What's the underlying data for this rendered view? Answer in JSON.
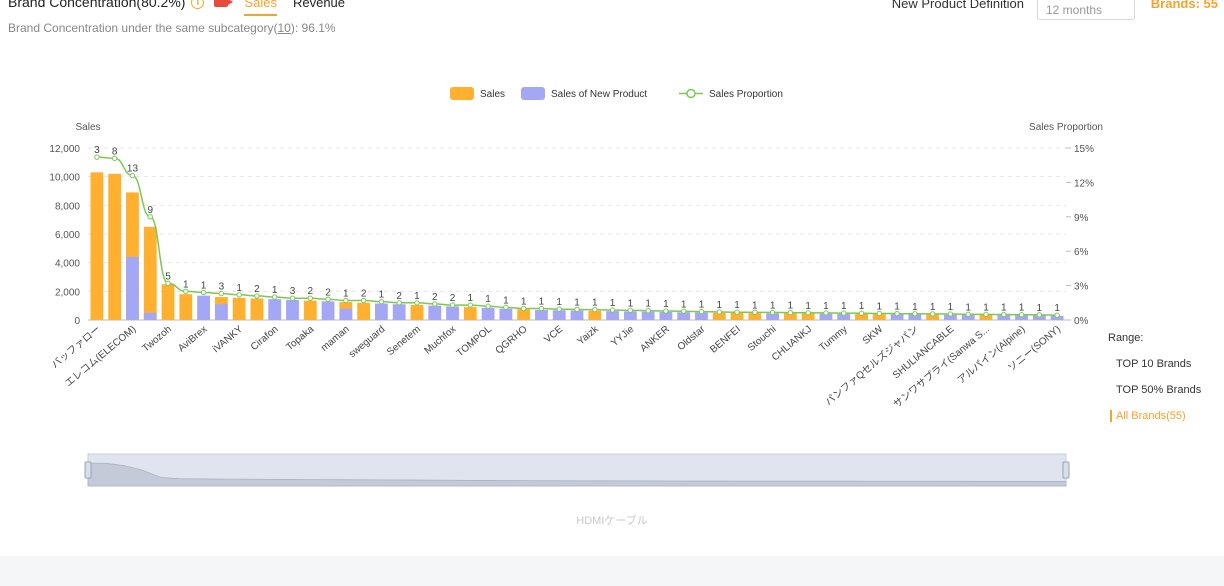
{
  "header": {
    "title": "Brand Concentration(80.2%)",
    "tabs": [
      "Sales",
      "Revenue"
    ],
    "active_tab": "Sales",
    "subtitle_prefix": "Brand Concentration under the same subcategory(",
    "subtitle_link": "10",
    "subtitle_suffix": "): 96.1%",
    "new_product_label": "New Product Definition",
    "months_value": "12 months",
    "brands_count": "Brands: 55"
  },
  "range": {
    "title": "Range:",
    "options": [
      "TOP 10 Brands",
      "TOP 50% Brands",
      "All Brands(55)"
    ],
    "active": "All Brands(55)"
  },
  "watermark": "HDMIケーブル",
  "colors": {
    "sales": "#ffb02e",
    "new_product": "#a4a7f5",
    "proportion": "#7dc855",
    "accent": "#f7a22b"
  },
  "chart_data": {
    "type": "bar",
    "legend": [
      "Sales",
      "Sales of New Product",
      "Sales Proportion"
    ],
    "ylabel": "Sales",
    "y2label": "Sales Proportion",
    "ylim": [
      0,
      12000
    ],
    "y2lim": [
      0,
      15
    ],
    "yticks": [
      "0",
      "2,000",
      "4,000",
      "6,000",
      "8,000",
      "10,000",
      "12,000"
    ],
    "y2ticks": [
      "0%",
      "3%",
      "6%",
      "9%",
      "12%",
      "15%"
    ],
    "xtick_labels": [
      "バッファロー",
      "エレコム(ELECOM)",
      "Twozoh",
      "AviBrex",
      "iVANKY",
      "Cirafon",
      "Topaka",
      "maman",
      "sweguard",
      "Senetem",
      "Muchfox",
      "TOMPOL",
      "QGRHO",
      "VCE",
      "Yaizk",
      "YYJie",
      "ANKER",
      "Oldstar",
      "BENFEI",
      "Stouchi",
      "CHLIANKJ",
      "Tummy",
      "SKW",
      "パンファQセルズジャパン",
      "SHULIANCABLE",
      "サンワサプライ(Sanwa S...",
      "アルパイン(Alpine)",
      "ソニー(SONY)"
    ],
    "xtick_positions": [
      0,
      2,
      4,
      6,
      8,
      10,
      12,
      14,
      16,
      18,
      20,
      22,
      24,
      26,
      28,
      30,
      32,
      34,
      36,
      38,
      40,
      42,
      44,
      46,
      48,
      50,
      52,
      54
    ],
    "sales": [
      10300,
      10200,
      8900,
      6500,
      2500,
      1800,
      1700,
      1600,
      1550,
      1500,
      1450,
      1400,
      1350,
      1300,
      1250,
      1200,
      1150,
      1100,
      1050,
      1000,
      950,
      900,
      850,
      800,
      750,
      700,
      680,
      660,
      640,
      620,
      600,
      580,
      560,
      540,
      520,
      500,
      490,
      480,
      470,
      460,
      450,
      440,
      430,
      420,
      410,
      400,
      390,
      380,
      370,
      360,
      350,
      340,
      330,
      320,
      300
    ],
    "new_product": [
      0,
      0,
      4400,
      500,
      0,
      0,
      1700,
      1100,
      0,
      0,
      1450,
      1400,
      0,
      1300,
      800,
      0,
      1150,
      1100,
      0,
      1000,
      950,
      0,
      850,
      800,
      0,
      700,
      680,
      660,
      0,
      620,
      600,
      580,
      560,
      540,
      520,
      0,
      0,
      0,
      470,
      0,
      0,
      440,
      430,
      0,
      0,
      400,
      390,
      0,
      370,
      360,
      0,
      340,
      330,
      320,
      300
    ],
    "labels": [
      "3",
      "8",
      "13",
      "9",
      "5",
      "1",
      "1",
      "3",
      "1",
      "2",
      "1",
      "3",
      "2",
      "2",
      "1",
      "2",
      "1",
      "2",
      "1",
      "2",
      "2",
      "1",
      "1",
      "1",
      "1",
      "1",
      "1",
      "1",
      "1",
      "1",
      "1",
      "1",
      "1",
      "1",
      "1",
      "1",
      "1",
      "1",
      "1",
      "1",
      "1",
      "1",
      "1",
      "1",
      "1",
      "1",
      "1",
      "1",
      "1",
      "1",
      "1",
      "1",
      "1",
      "1",
      "1"
    ],
    "proportion": [
      14.2,
      14.1,
      12.6,
      9.0,
      3.2,
      2.5,
      2.4,
      2.3,
      2.2,
      2.1,
      2.0,
      1.9,
      1.9,
      1.8,
      1.7,
      1.7,
      1.6,
      1.5,
      1.5,
      1.4,
      1.3,
      1.3,
      1.2,
      1.1,
      1.0,
      1.0,
      0.95,
      0.92,
      0.9,
      0.87,
      0.84,
      0.81,
      0.78,
      0.76,
      0.73,
      0.7,
      0.68,
      0.67,
      0.66,
      0.64,
      0.63,
      0.62,
      0.6,
      0.59,
      0.57,
      0.56,
      0.54,
      0.53,
      0.52,
      0.5,
      0.49,
      0.48,
      0.46,
      0.45,
      0.42
    ]
  }
}
